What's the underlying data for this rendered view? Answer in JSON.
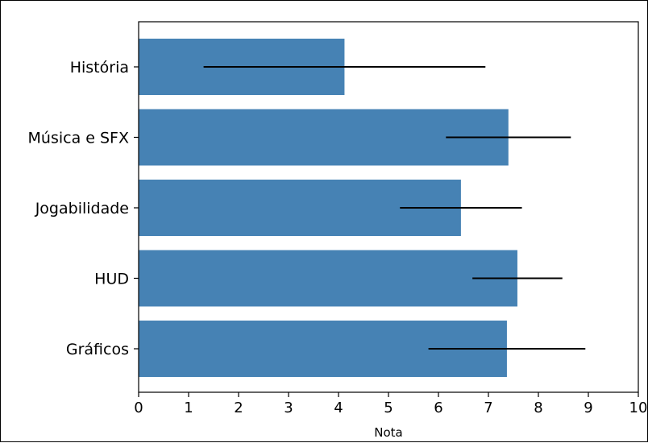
{
  "chart_data": {
    "type": "bar",
    "orientation": "horizontal",
    "categories": [
      "Gráficos",
      "HUD",
      "Jogabilidade",
      "Música e SFX",
      "História"
    ],
    "values": [
      7.37,
      7.58,
      6.45,
      7.4,
      4.12
    ],
    "errors": [
      1.57,
      0.9,
      1.22,
      1.25,
      2.82
    ],
    "xlabel": "Nota",
    "ylabel": "",
    "xlim": [
      0,
      10
    ],
    "xticks": [
      "0",
      "1",
      "2",
      "3",
      "4",
      "5",
      "6",
      "7",
      "8",
      "9",
      "10"
    ],
    "grid": false,
    "bar_color": "#4682b4",
    "error_color": "#000000"
  }
}
